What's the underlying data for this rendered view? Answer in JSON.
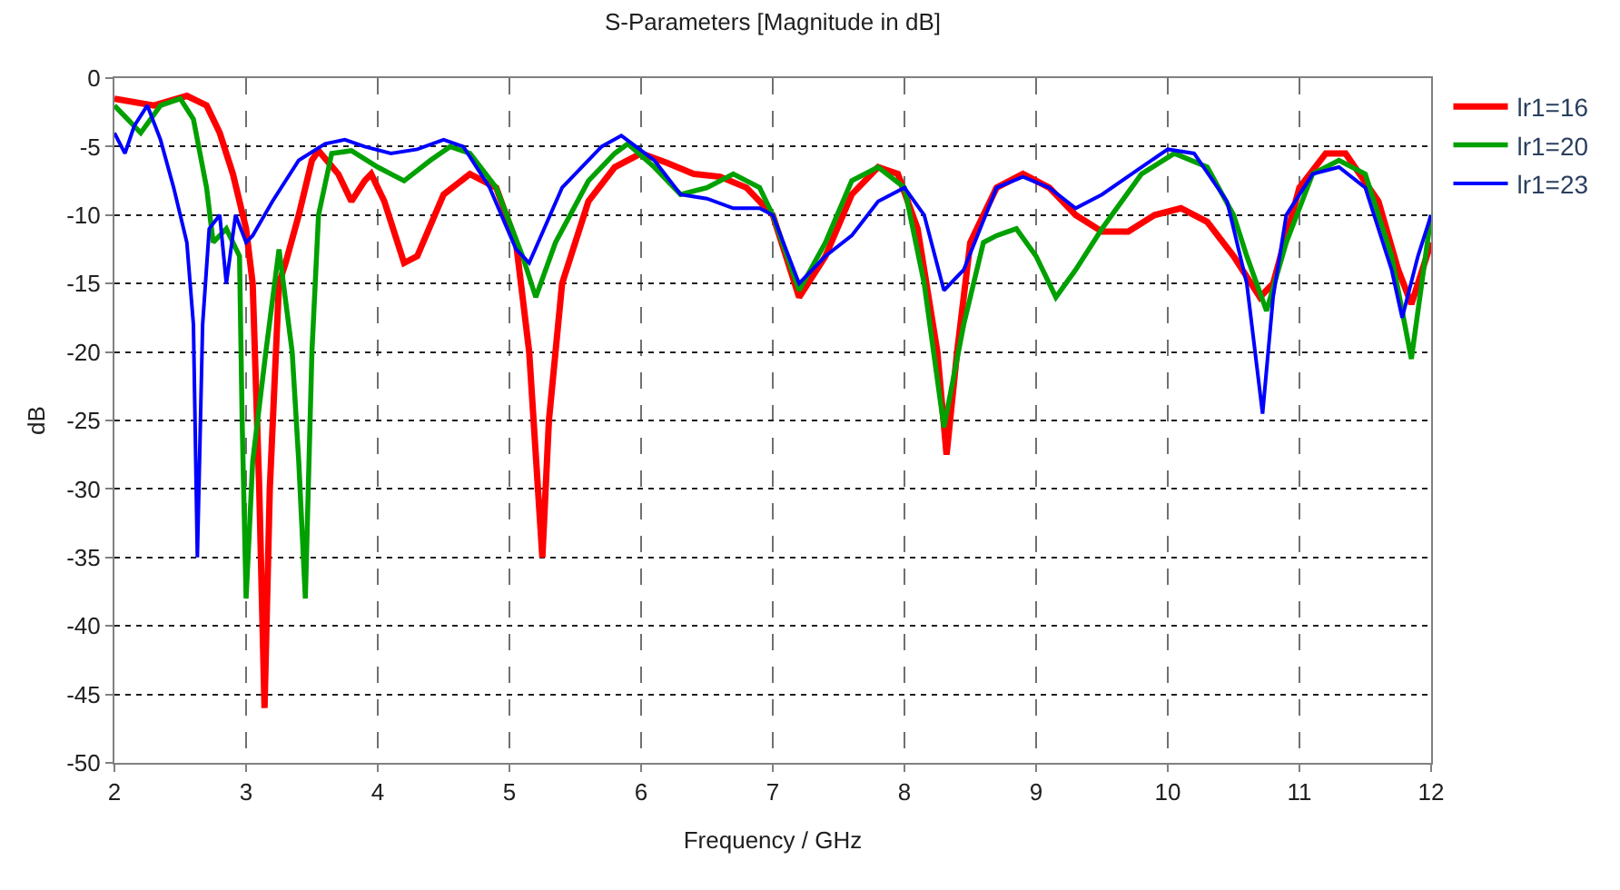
{
  "chart_data": {
    "type": "line",
    "title": "S-Parameters [Magnitude in dB]",
    "xlabel": "Frequency / GHz",
    "ylabel": "dB",
    "xlim": [
      2,
      12
    ],
    "xticks": [
      2,
      3,
      4,
      5,
      6,
      7,
      8,
      9,
      10,
      11,
      12
    ],
    "ylim": [
      -50,
      0
    ],
    "yticks": [
      -50,
      -45,
      -40,
      -35,
      -30,
      -25,
      -20,
      -15,
      -10,
      -5,
      0
    ],
    "grid": true,
    "legend": "top right",
    "marker": "none",
    "line_style": "solid",
    "series": [
      {
        "name": "lr1=16",
        "color": "#ff0000",
        "x": [
          2,
          2.3,
          2.55,
          2.7,
          2.8,
          2.9,
          3.0,
          3.05,
          3.1,
          3.14,
          3.18,
          3.25,
          3.3,
          3.4,
          3.5,
          3.55,
          3.7,
          3.8,
          3.9,
          3.95,
          4.05,
          4.2,
          4.3,
          4.5,
          4.7,
          4.9,
          5.05,
          5.15,
          5.25,
          5.3,
          5.4,
          5.6,
          5.8,
          6.0,
          6.2,
          6.4,
          6.6,
          6.8,
          7.0,
          7.2,
          7.4,
          7.6,
          7.8,
          7.95,
          8.1,
          8.25,
          8.32,
          8.4,
          8.5,
          8.7,
          8.9,
          9.1,
          9.3,
          9.5,
          9.7,
          9.9,
          10.1,
          10.3,
          10.5,
          10.7,
          10.8,
          11.0,
          11.2,
          11.35,
          11.6,
          11.75,
          11.85,
          12
        ],
        "values": [
          -1.5,
          -2,
          -1.3,
          -2,
          -4,
          -7,
          -11,
          -15,
          -30,
          -46,
          -30,
          -15,
          -13.5,
          -10,
          -6,
          -5.3,
          -7,
          -9,
          -7.5,
          -7,
          -9,
          -13.5,
          -13,
          -8.5,
          -7,
          -8,
          -12,
          -20,
          -35,
          -25,
          -15,
          -9,
          -6.5,
          -5.5,
          -6.2,
          -7,
          -7.2,
          -8,
          -10,
          -16,
          -13,
          -8.5,
          -6.5,
          -7,
          -11,
          -20,
          -27.5,
          -20,
          -12,
          -8,
          -7,
          -8,
          -10,
          -11.2,
          -11.2,
          -10,
          -9.5,
          -10.5,
          -13,
          -16,
          -15,
          -8,
          -5.5,
          -5.5,
          -9,
          -14,
          -16.5,
          -12
        ]
      },
      {
        "name": "lr1=20",
        "color": "#00a000",
        "x": [
          2,
          2.1,
          2.2,
          2.35,
          2.5,
          2.6,
          2.7,
          2.75,
          2.85,
          2.95,
          2.97,
          3.0,
          3.05,
          3.1,
          3.15,
          3.25,
          3.35,
          3.4,
          3.45,
          3.5,
          3.55,
          3.65,
          3.8,
          4.0,
          4.2,
          4.4,
          4.55,
          4.7,
          4.9,
          5.1,
          5.2,
          5.35,
          5.6,
          5.8,
          5.9,
          6.1,
          6.3,
          6.5,
          6.7,
          6.9,
          7.0,
          7.2,
          7.4,
          7.6,
          7.8,
          8.0,
          8.15,
          8.3,
          8.45,
          8.6,
          8.7,
          8.85,
          9.0,
          9.15,
          9.3,
          9.5,
          9.8,
          10.05,
          10.3,
          10.5,
          10.6,
          10.75,
          10.9,
          11.1,
          11.3,
          11.5,
          11.7,
          11.85,
          12
        ],
        "values": [
          -2,
          -3,
          -4,
          -2,
          -1.5,
          -3,
          -8,
          -12,
          -11,
          -13,
          -25,
          -38,
          -28,
          -24,
          -20,
          -12.5,
          -20,
          -28,
          -38,
          -20,
          -10,
          -5.5,
          -5.3,
          -6.5,
          -7.5,
          -6,
          -5,
          -5.5,
          -8,
          -13,
          -16,
          -12,
          -7.5,
          -5.5,
          -4.8,
          -6.5,
          -8.5,
          -8,
          -7,
          -8,
          -10,
          -15.5,
          -12,
          -7.5,
          -6.5,
          -8,
          -15,
          -25.5,
          -18,
          -12,
          -11.5,
          -11,
          -13,
          -16,
          -14,
          -11,
          -7,
          -5.5,
          -6.5,
          -10,
          -13,
          -17,
          -12,
          -7,
          -6,
          -7,
          -13,
          -20.5,
          -10
        ]
      },
      {
        "name": "lr1=23",
        "color": "#0000ff",
        "x": [
          2,
          2.08,
          2.15,
          2.25,
          2.35,
          2.45,
          2.55,
          2.6,
          2.63,
          2.67,
          2.72,
          2.8,
          2.85,
          2.92,
          3.0,
          3.05,
          3.2,
          3.4,
          3.6,
          3.75,
          3.9,
          4.1,
          4.3,
          4.5,
          4.65,
          4.85,
          5.05,
          5.15,
          5.4,
          5.7,
          5.85,
          6.1,
          6.3,
          6.5,
          6.7,
          6.9,
          7.0,
          7.2,
          7.4,
          7.6,
          7.8,
          8.0,
          8.15,
          8.3,
          8.45,
          8.7,
          8.9,
          9.1,
          9.3,
          9.5,
          9.8,
          10.0,
          10.2,
          10.45,
          10.6,
          10.72,
          10.8,
          10.9,
          11.1,
          11.3,
          11.5,
          11.7,
          11.78,
          11.9,
          12
        ],
        "values": [
          -4,
          -5.5,
          -3.5,
          -2,
          -4.5,
          -8,
          -12,
          -18,
          -35,
          -18,
          -11,
          -10,
          -15,
          -10,
          -12,
          -11.5,
          -9,
          -6,
          -4.8,
          -4.5,
          -5,
          -5.5,
          -5.2,
          -4.5,
          -5,
          -8,
          -12.5,
          -13.5,
          -8,
          -5,
          -4.2,
          -6,
          -8.5,
          -8.8,
          -9.5,
          -9.5,
          -10,
          -15,
          -13,
          -11.5,
          -9,
          -8,
          -10,
          -15.5,
          -14,
          -8,
          -7.2,
          -8,
          -9.5,
          -8.5,
          -6.5,
          -5.2,
          -5.5,
          -9,
          -15,
          -24.5,
          -16,
          -10,
          -7,
          -6.5,
          -8,
          -14,
          -17.5,
          -13,
          -10
        ]
      }
    ]
  }
}
